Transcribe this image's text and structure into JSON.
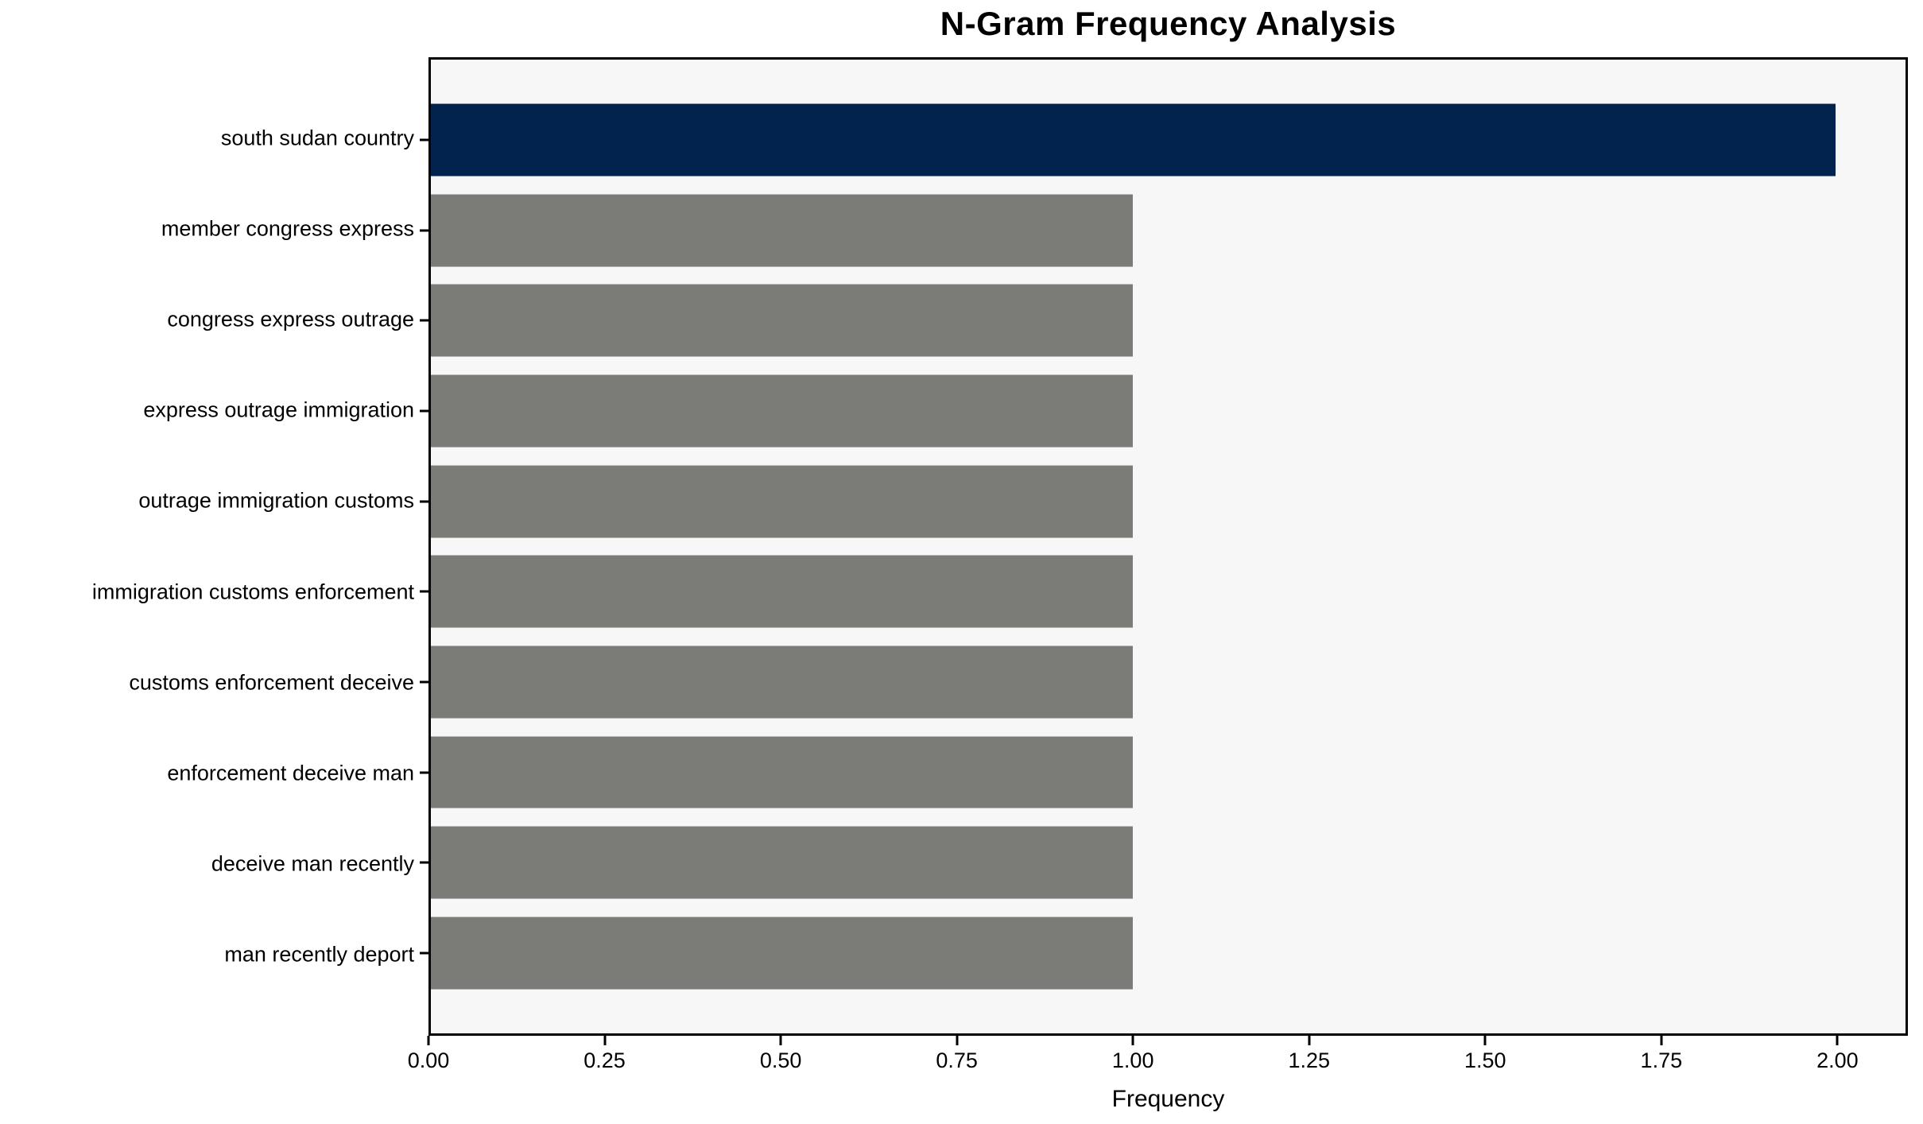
{
  "figure": {
    "title": "N-Gram Frequency Analysis",
    "xlabel": "Frequency"
  },
  "chart_data": {
    "type": "bar",
    "orientation": "horizontal",
    "title": "N-Gram Frequency Analysis",
    "xlabel": "Frequency",
    "ylabel": "",
    "categories": [
      "south sudan country",
      "member congress express",
      "congress express outrage",
      "express outrage immigration",
      "outrage immigration customs",
      "immigration customs enforcement",
      "customs enforcement deceive",
      "enforcement deceive man",
      "deceive man recently",
      "man recently deport"
    ],
    "values": [
      2,
      1,
      1,
      1,
      1,
      1,
      1,
      1,
      1,
      1
    ],
    "bar_colors": [
      "#02234d",
      "#7b7b78",
      "#7b7b78",
      "#7b7b78",
      "#7b7b78",
      "#7b7b78",
      "#7b7b78",
      "#7b7b78",
      "#7b7b78",
      "#7b7b78"
    ],
    "xlim": [
      0,
      2.1
    ],
    "x_ticks": [
      "0.00",
      "0.25",
      "0.50",
      "0.75",
      "1.00",
      "1.25",
      "1.50",
      "1.75",
      "2.00"
    ],
    "x_tick_values": [
      0,
      0.25,
      0.5,
      0.75,
      1.0,
      1.25,
      1.5,
      1.75,
      2.0
    ],
    "grid": false,
    "legend": false,
    "colors": {
      "highlight_bar": "#02234d",
      "default_bar": "#7b7b78",
      "plot_background": "#f7f7f7",
      "figure_background": "#ffffff",
      "spine": "#000000",
      "text": "#000000"
    }
  }
}
